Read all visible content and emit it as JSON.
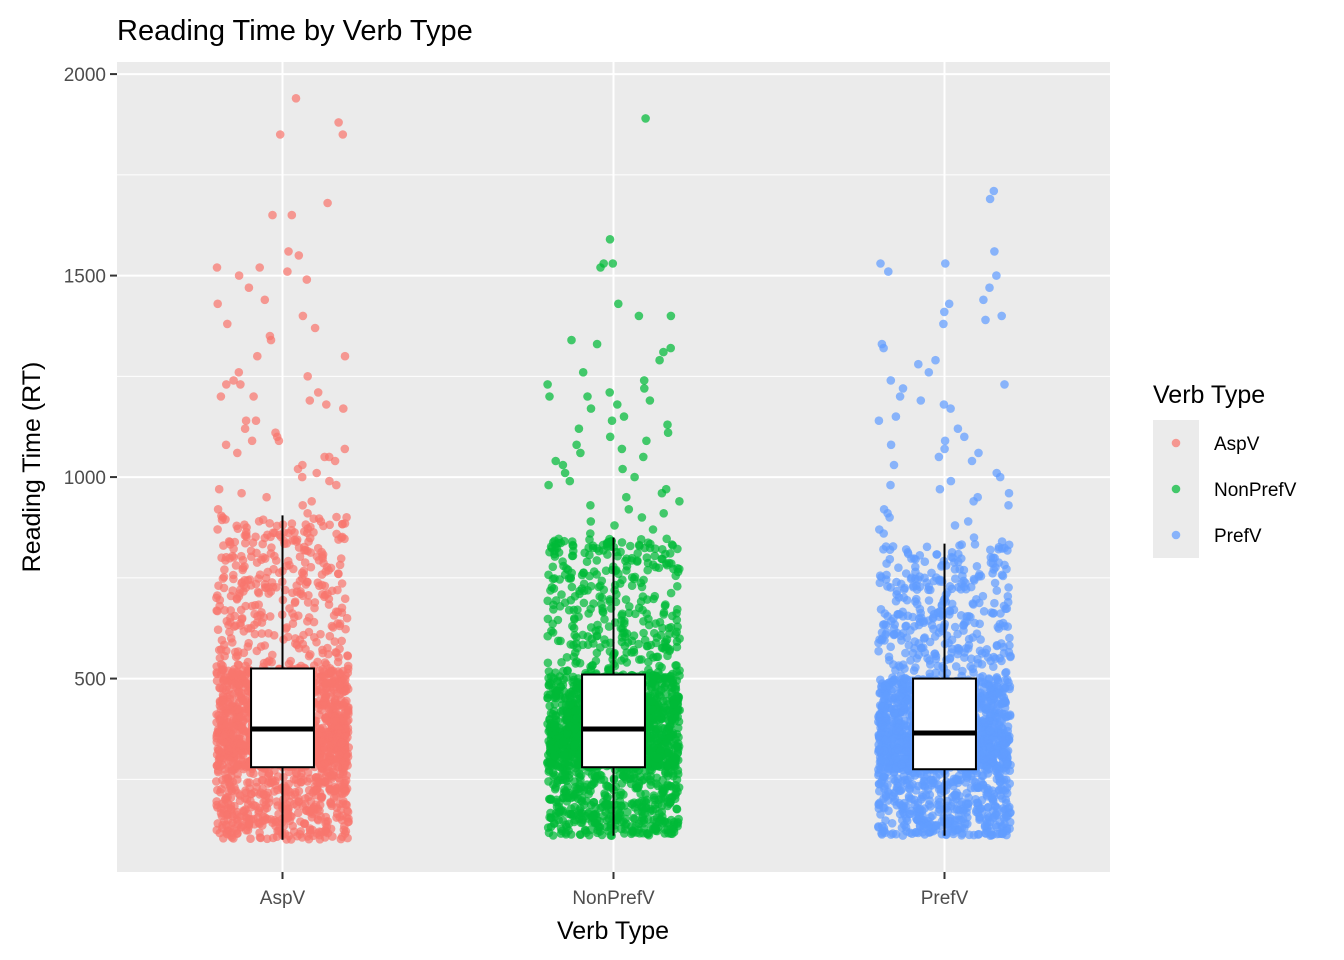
{
  "chart_data": {
    "type": "boxplot-jitter",
    "title": "Reading Time by Verb Type",
    "xlabel": "Verb Type",
    "ylabel": "Reading Time (RT)",
    "categories": [
      "AspV",
      "NonPrefV",
      "PrefV"
    ],
    "ylim": [
      20,
      2030
    ],
    "yticks": [
      500,
      1000,
      1500,
      2000
    ],
    "grid": true,
    "legend": {
      "title": "Verb Type",
      "placement": "right",
      "entries": [
        "AspV",
        "NonPrefV",
        "PrefV"
      ]
    },
    "colors": {
      "AspV": "#F8766D",
      "NonPrefV": "#00BA38",
      "PrefV": "#619CFF"
    },
    "series": [
      {
        "category": "AspV",
        "whisker_low": 100,
        "q1": 280,
        "median": 375,
        "q3": 525,
        "whisker_high": 905,
        "outliers": [
          1940,
          1880,
          1850,
          1850,
          1680,
          1650,
          1650,
          1560,
          1550,
          1520,
          1520,
          1510,
          1500,
          1490,
          1470,
          1440,
          1430,
          1400,
          1380,
          1370,
          1350,
          1340,
          1300,
          1300,
          1260,
          1250,
          1240,
          1230,
          1230,
          1210,
          1200,
          1200,
          1190,
          1180,
          1170,
          1140,
          1140,
          1120,
          1110,
          1100,
          1090,
          1090,
          1080,
          1070,
          1060,
          1050,
          1050,
          1040,
          1030,
          1020,
          1010,
          1000,
          990,
          980,
          970,
          960,
          950,
          940,
          930,
          920,
          910
        ]
      },
      {
        "category": "NonPrefV",
        "whisker_low": 110,
        "q1": 280,
        "median": 375,
        "q3": 510,
        "whisker_high": 850,
        "outliers": [
          1890,
          1590,
          1530,
          1530,
          1520,
          1430,
          1400,
          1400,
          1340,
          1330,
          1320,
          1310,
          1290,
          1260,
          1240,
          1230,
          1220,
          1210,
          1200,
          1200,
          1190,
          1180,
          1170,
          1150,
          1140,
          1130,
          1120,
          1110,
          1100,
          1090,
          1080,
          1070,
          1060,
          1050,
          1040,
          1030,
          1020,
          1010,
          1000,
          990,
          980,
          970,
          960,
          950,
          940,
          930,
          920,
          910,
          900,
          890,
          880,
          870,
          860
        ]
      },
      {
        "category": "PrefV",
        "whisker_low": 110,
        "q1": 275,
        "median": 365,
        "q3": 500,
        "whisker_high": 835,
        "outliers": [
          1710,
          1690,
          1560,
          1530,
          1530,
          1510,
          1500,
          1470,
          1440,
          1430,
          1410,
          1400,
          1390,
          1380,
          1330,
          1320,
          1290,
          1280,
          1260,
          1240,
          1230,
          1220,
          1200,
          1190,
          1180,
          1170,
          1150,
          1140,
          1120,
          1100,
          1090,
          1080,
          1070,
          1060,
          1050,
          1040,
          1030,
          1010,
          1000,
          990,
          980,
          970,
          960,
          950,
          940,
          930,
          920,
          910,
          900,
          890,
          880,
          870,
          860,
          850,
          840
        ]
      }
    ]
  }
}
